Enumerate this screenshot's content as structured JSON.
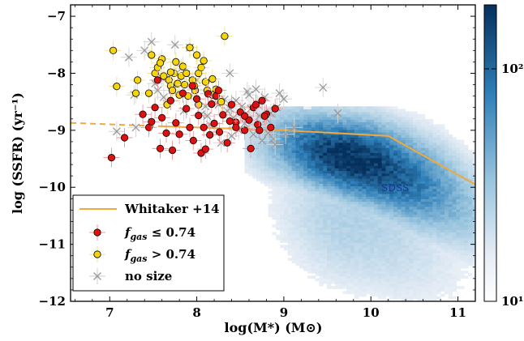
{
  "chart_data": {
    "type": "scatter",
    "xlabel": "log(M*) (M⊙)",
    "ylabel": "log (SSFR) (yr⁻¹)",
    "xlim": [
      6.55,
      11.2
    ],
    "ylim": [
      -12.0,
      -6.8
    ],
    "x_ticks": [
      7,
      8,
      9,
      10,
      11
    ],
    "y_ticks": [
      -12,
      -11,
      -10,
      -9,
      -8,
      -7
    ],
    "grid": false,
    "legend_position": "lower-left",
    "annotation": "SDSS",
    "colorbar": {
      "scale": "log",
      "range": [
        10,
        200
      ],
      "tick_labels": [
        "10¹",
        "10²"
      ],
      "colormap": "white-to-blue"
    },
    "colors": {
      "red": "#dd1111",
      "yellow": "#f5d40a",
      "gray": "#9a9a9a",
      "line": "#f2a83a",
      "density": "#1a6aa8"
    },
    "legend": [
      {
        "key": "whitaker",
        "label": "Whitaker +14"
      },
      {
        "key": "low",
        "label_main": "f",
        "label_sub": "gas",
        "label_rest": " ≤ 0.74"
      },
      {
        "key": "high",
        "label_main": "f",
        "label_sub": "gas",
        "label_rest": " > 0.74"
      },
      {
        "key": "nosize",
        "label": "no size"
      }
    ],
    "series": [
      {
        "name": "Whitaker +14",
        "type": "line",
        "dashed_x": [
          6.55,
          7.6
        ],
        "x": [
          7.6,
          9.0,
          10.2,
          11.2
        ],
        "y": [
          -8.93,
          -9.0,
          -9.1,
          -9.95
        ]
      },
      {
        "name": "f_gas ≤ 0.74",
        "type": "scatter",
        "x": [
          7.02,
          7.17,
          7.38,
          7.45,
          7.52,
          7.58,
          7.6,
          7.65,
          7.7,
          7.72,
          7.76,
          7.8,
          7.84,
          7.88,
          7.92,
          7.96,
          8.0,
          8.02,
          8.05,
          8.08,
          8.1,
          8.13,
          8.17,
          8.2,
          8.22,
          8.26,
          8.3,
          8.35,
          8.4,
          8.45,
          8.5,
          8.55,
          8.6,
          8.65,
          8.7,
          8.75,
          8.8,
          8.85,
          8.9,
          8.55,
          8.45,
          8.68,
          8.78,
          8.62,
          8.38,
          8.15,
          7.95,
          7.55,
          7.48,
          8.25,
          8.72
        ],
        "y": [
          -9.48,
          -9.13,
          -8.72,
          -8.95,
          -8.6,
          -9.32,
          -8.78,
          -9.05,
          -8.48,
          -9.35,
          -8.87,
          -9.07,
          -8.35,
          -8.62,
          -8.95,
          -9.18,
          -8.45,
          -8.74,
          -9.4,
          -8.95,
          -9.33,
          -8.36,
          -8.54,
          -8.88,
          -8.4,
          -9.03,
          -8.73,
          -9.22,
          -8.55,
          -8.86,
          -8.68,
          -9.0,
          -8.82,
          -8.6,
          -8.9,
          -8.48,
          -8.72,
          -8.95,
          -8.62,
          -8.75,
          -8.95,
          -8.55,
          -8.75,
          -9.32,
          -8.84,
          -9.08,
          -8.22,
          -8.12,
          -8.85,
          -8.3,
          -9.0
        ]
      },
      {
        "name": "f_gas > 0.74",
        "type": "scatter",
        "x": [
          7.04,
          7.08,
          7.3,
          7.32,
          7.48,
          7.52,
          7.55,
          7.6,
          7.62,
          7.68,
          7.7,
          7.72,
          7.74,
          7.76,
          7.78,
          7.8,
          7.82,
          7.84,
          7.86,
          7.88,
          7.9,
          7.92,
          7.95,
          7.98,
          8.0,
          8.02,
          8.05,
          8.1,
          8.12,
          8.18,
          8.22,
          8.28,
          8.32,
          8.02,
          7.66,
          7.45,
          7.7,
          7.97,
          8.08,
          8.18,
          7.58
        ],
        "y": [
          -7.6,
          -8.23,
          -8.35,
          -8.12,
          -7.68,
          -8.0,
          -7.9,
          -7.75,
          -8.05,
          -8.12,
          -8.22,
          -8.3,
          -8.0,
          -7.8,
          -8.18,
          -8.38,
          -8.05,
          -7.88,
          -8.2,
          -8.0,
          -8.4,
          -7.55,
          -8.12,
          -8.3,
          -7.68,
          -8.0,
          -7.9,
          -8.15,
          -8.3,
          -8.1,
          -8.28,
          -8.5,
          -7.35,
          -8.55,
          -8.55,
          -8.35,
          -7.98,
          -8.22,
          -7.78,
          -8.38,
          -7.82
        ]
      },
      {
        "name": "no size",
        "type": "scatter",
        "x": [
          7.08,
          7.22,
          7.28,
          7.4,
          7.48,
          7.52,
          7.62,
          7.72,
          7.75,
          7.85,
          7.88,
          7.92,
          7.98,
          8.05,
          8.1,
          8.15,
          8.2,
          8.25,
          8.28,
          8.32,
          8.35,
          8.38,
          8.42,
          8.45,
          8.48,
          8.52,
          8.55,
          8.58,
          8.62,
          8.65,
          8.7,
          8.72,
          8.75,
          8.78,
          8.82,
          8.85,
          8.88,
          8.92,
          8.95,
          9.02,
          9.12,
          9.45,
          9.62,
          7.3,
          7.6,
          8.0,
          8.4,
          8.6,
          8.8,
          7.55,
          7.82,
          8.12,
          8.38,
          8.68,
          8.9,
          9.0
        ],
        "y": [
          -9.02,
          -7.72,
          -8.38,
          -7.6,
          -7.45,
          -8.18,
          -8.42,
          -8.3,
          -7.5,
          -8.66,
          -8.02,
          -7.55,
          -8.28,
          -8.72,
          -8.58,
          -8.9,
          -8.4,
          -8.55,
          -9.22,
          -8.46,
          -8.66,
          -8.0,
          -8.78,
          -8.48,
          -9.0,
          -8.58,
          -8.88,
          -8.32,
          -8.62,
          -9.07,
          -8.55,
          -8.75,
          -9.18,
          -8.42,
          -9.05,
          -8.7,
          -9.15,
          -8.6,
          -8.35,
          -9.07,
          -8.95,
          -8.25,
          -8.7,
          -8.95,
          -8.08,
          -8.12,
          -9.1,
          -8.38,
          -8.8,
          -8.3,
          -7.92,
          -8.75,
          -8.62,
          -8.28,
          -9.25,
          -8.45
        ]
      },
      {
        "name": "SDSS",
        "type": "density",
        "cluster_center": [
          9.7,
          -9.55
        ],
        "trend": [
          [
            9.0,
            -9.25
          ],
          [
            10.0,
            -9.6
          ],
          [
            10.8,
            -10.1
          ],
          [
            11.2,
            -10.45
          ]
        ]
      }
    ]
  }
}
